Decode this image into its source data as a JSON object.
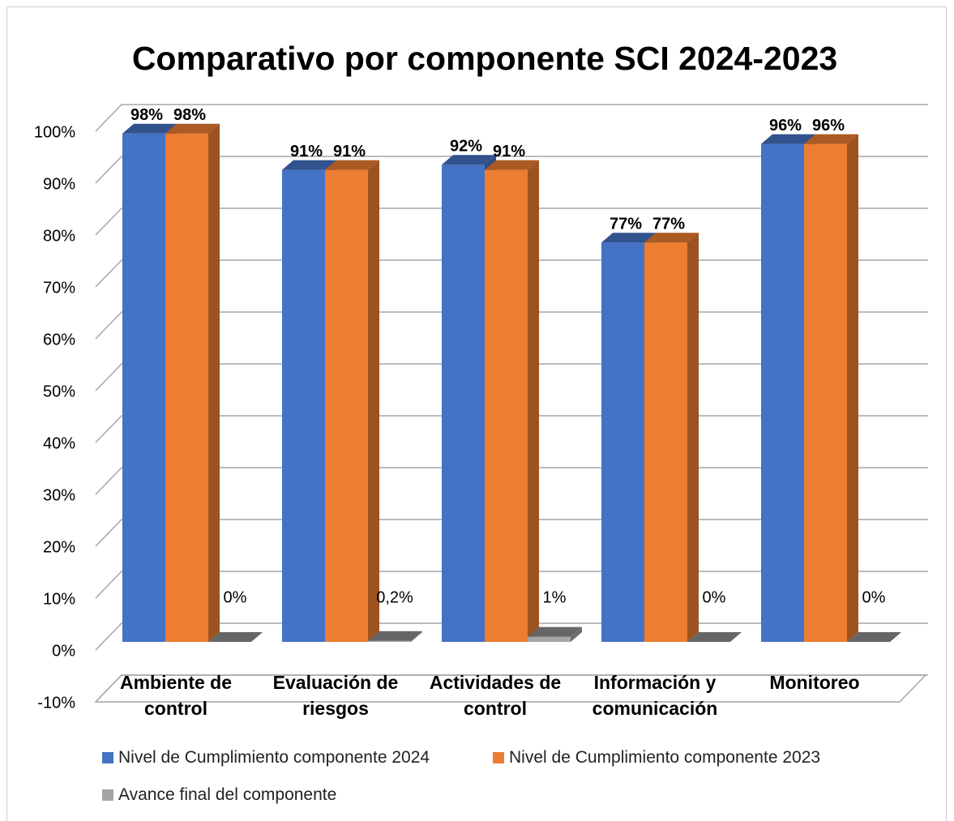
{
  "chart_data": {
    "type": "bar3d",
    "title": "Comparativo por componente SCI 2024-2023",
    "categories": [
      "Ambiente de control",
      "Evaluación de riesgos",
      "Actividades de control",
      "Información y comunicación",
      "Monitoreo"
    ],
    "series": [
      {
        "name": "Nivel de Cumplimiento componente 2024",
        "color": "#4472c4",
        "values": [
          98,
          91,
          92,
          77,
          96
        ],
        "value_labels": [
          "98%",
          "91%",
          "92%",
          "77%",
          "96%"
        ]
      },
      {
        "name": "Nivel de Cumplimiento componente 2023",
        "color": "#ed7d31",
        "values": [
          98,
          91,
          91,
          77,
          96
        ],
        "value_labels": [
          "98%",
          "91%",
          "91%",
          "77%",
          "96%"
        ]
      },
      {
        "name": "Avance final del componente",
        "color": "#a5a5a5",
        "values": [
          0,
          0.2,
          1,
          0,
          0
        ],
        "value_labels": [
          "0%",
          "0,2%",
          "1%",
          "0%",
          "0%"
        ]
      }
    ],
    "ylim": [
      -10,
      100
    ],
    "yticks": [
      {
        "value": -10,
        "label": "-10%"
      },
      {
        "value": 0,
        "label": "0%"
      },
      {
        "value": 10,
        "label": "10%"
      },
      {
        "value": 20,
        "label": "20%"
      },
      {
        "value": 30,
        "label": "30%"
      },
      {
        "value": 40,
        "label": "40%"
      },
      {
        "value": 50,
        "label": "50%"
      },
      {
        "value": 60,
        "label": "60%"
      },
      {
        "value": 70,
        "label": "70%"
      },
      {
        "value": 80,
        "label": "80%"
      },
      {
        "value": 90,
        "label": "90%"
      },
      {
        "value": 100,
        "label": "100%"
      }
    ],
    "grid": true
  }
}
